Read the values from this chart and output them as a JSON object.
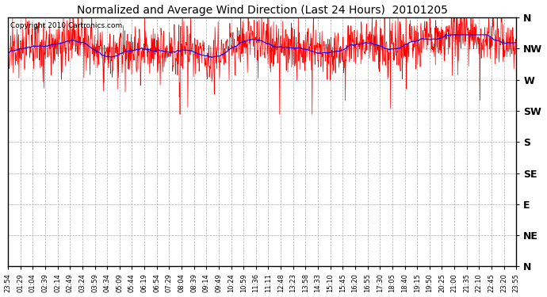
{
  "title": "Normalized and Average Wind Direction (Last 24 Hours)  20101205",
  "copyright": "Copyright 2010 Cartronics.com",
  "background_color": "#ffffff",
  "plot_bg_color": "#ffffff",
  "grid_color": "#aaaaaa",
  "red_color": "#ff0000",
  "blue_color": "#0000ff",
  "y_labels": [
    "N",
    "NW",
    "W",
    "SW",
    "S",
    "SE",
    "E",
    "NE",
    "N"
  ],
  "y_ticks": [
    360,
    315,
    270,
    225,
    180,
    135,
    90,
    45,
    0
  ],
  "ylim": [
    0,
    360
  ],
  "x_tick_labels": [
    "23:54",
    "01:29",
    "01:04",
    "02:39",
    "02:14",
    "02:49",
    "03:24",
    "03:59",
    "04:34",
    "05:09",
    "05:44",
    "06:19",
    "06:54",
    "07:29",
    "08:04",
    "08:39",
    "09:14",
    "09:49",
    "10:24",
    "10:59",
    "11:36",
    "11:11",
    "12:48",
    "13:23",
    "13:58",
    "14:33",
    "15:10",
    "15:45",
    "16:20",
    "16:55",
    "17:30",
    "18:05",
    "18:40",
    "19:15",
    "19:50",
    "20:25",
    "21:00",
    "21:35",
    "22:10",
    "22:45",
    "23:20",
    "23:55"
  ],
  "num_points": 1440,
  "avg_wind_base": 318,
  "seed": 42
}
